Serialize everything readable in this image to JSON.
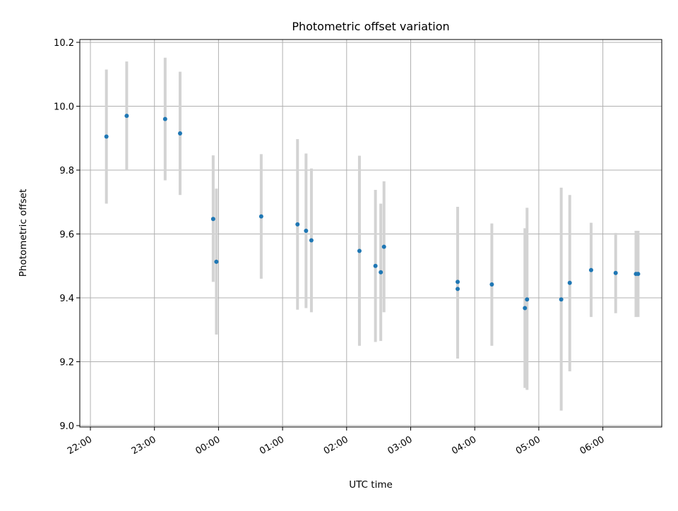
{
  "chart_data": {
    "type": "scatter",
    "title": "Photometric offset variation",
    "xlabel": "UTC time",
    "ylabel": "Photometric offset",
    "grid": true,
    "x_unit": "time of day (UTC), night of two consecutive days",
    "xlim": [
      "21:55",
      "06:58"
    ],
    "ylim": [
      9.0,
      10.2
    ],
    "x_ticks": [
      "22:00",
      "23:00",
      "00:00",
      "01:00",
      "02:00",
      "03:00",
      "04:00",
      "05:00",
      "06:00"
    ],
    "y_ticks": [
      "9.0",
      "9.2",
      "9.4",
      "9.6",
      "9.8",
      "10.0",
      "10.2"
    ],
    "colors": {
      "point": "#1f77b4",
      "errorbar": "#d3d3d3",
      "grid": "#b0b0b0"
    },
    "series": [
      {
        "points": [
          {
            "x": "22:15",
            "y": 9.905,
            "ylow": 9.695,
            "yhigh": 10.115
          },
          {
            "x": "22:34",
            "y": 9.97,
            "ylow": 9.8,
            "yhigh": 10.14
          },
          {
            "x": "23:10",
            "y": 9.96,
            "ylow": 9.768,
            "yhigh": 10.152
          },
          {
            "x": "23:24",
            "y": 9.915,
            "ylow": 9.722,
            "yhigh": 10.108
          },
          {
            "x": "23:55",
            "y": 9.647,
            "ylow": 9.45,
            "yhigh": 9.846
          },
          {
            "x": "23:58",
            "y": 9.513,
            "ylow": 9.285,
            "yhigh": 9.742
          },
          {
            "x": "00:40",
            "y": 9.655,
            "ylow": 9.46,
            "yhigh": 9.85
          },
          {
            "x": "01:14",
            "y": 9.63,
            "ylow": 9.363,
            "yhigh": 9.897
          },
          {
            "x": "01:22",
            "y": 9.61,
            "ylow": 9.368,
            "yhigh": 9.852
          },
          {
            "x": "01:27",
            "y": 9.58,
            "ylow": 9.355,
            "yhigh": 9.805
          },
          {
            "x": "02:12",
            "y": 9.547,
            "ylow": 9.25,
            "yhigh": 9.845
          },
          {
            "x": "02:27",
            "y": 9.5,
            "ylow": 9.262,
            "yhigh": 9.738
          },
          {
            "x": "02:32",
            "y": 9.48,
            "ylow": 9.265,
            "yhigh": 9.695
          },
          {
            "x": "02:35",
            "y": 9.56,
            "ylow": 9.355,
            "yhigh": 9.765
          },
          {
            "x": "03:44",
            "y": 9.45,
            "ylow": 9.212,
            "yhigh": 9.685
          },
          {
            "x": "03:44",
            "y": 9.428,
            "ylow": 9.21,
            "yhigh": 9.645
          },
          {
            "x": "04:16",
            "y": 9.442,
            "ylow": 9.25,
            "yhigh": 9.633
          },
          {
            "x": "04:47",
            "y": 9.368,
            "ylow": 9.118,
            "yhigh": 9.618
          },
          {
            "x": "04:49",
            "y": 9.395,
            "ylow": 9.112,
            "yhigh": 9.682
          },
          {
            "x": "05:21",
            "y": 9.395,
            "ylow": 9.047,
            "yhigh": 9.745
          },
          {
            "x": "05:29",
            "y": 9.447,
            "ylow": 9.17,
            "yhigh": 9.722
          },
          {
            "x": "05:49",
            "y": 9.487,
            "ylow": 9.34,
            "yhigh": 9.635
          },
          {
            "x": "06:12",
            "y": 9.478,
            "ylow": 9.352,
            "yhigh": 9.603
          },
          {
            "x": "06:31",
            "y": 9.475,
            "ylow": 9.34,
            "yhigh": 9.61
          },
          {
            "x": "06:33",
            "y": 9.475,
            "ylow": 9.34,
            "yhigh": 9.61
          }
        ]
      }
    ]
  }
}
